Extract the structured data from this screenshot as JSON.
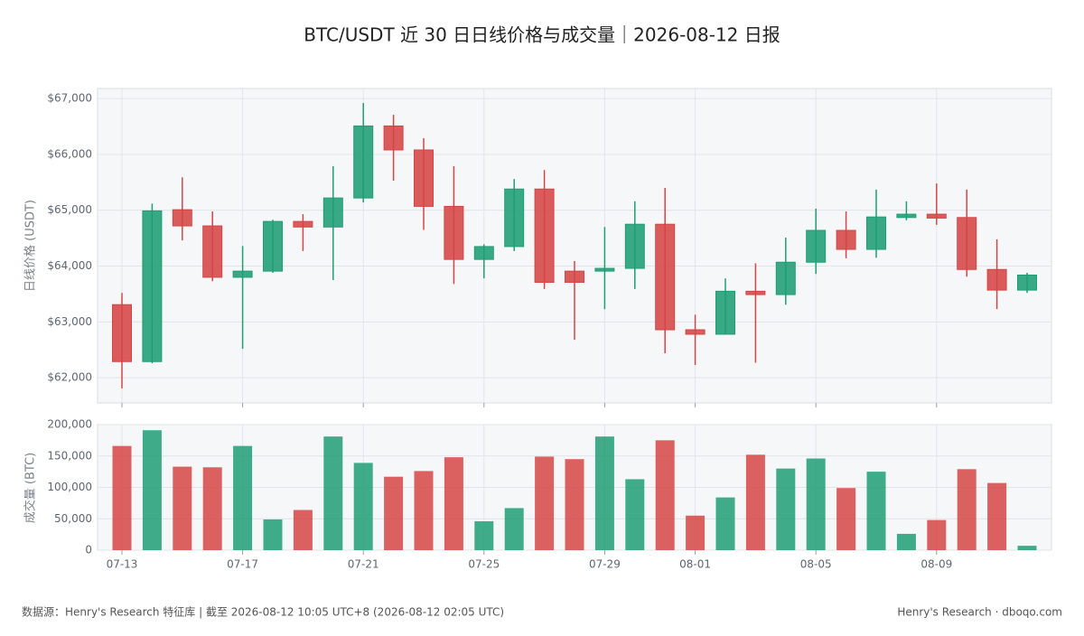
{
  "chart_data": {
    "type": "candlestick",
    "title": "BTC/USDT 近 30 日日线价格与成交量｜2026-08-12 日报",
    "ylabel": "日线价格 (USDT)",
    "categories": [
      "07-13",
      null,
      null,
      null,
      "07-17",
      null,
      null,
      null,
      "07-21",
      null,
      null,
      null,
      "07-25",
      null,
      null,
      null,
      "07-29",
      null,
      null,
      "08-01",
      null,
      null,
      null,
      "08-05",
      null,
      null,
      null,
      "08-09",
      null,
      null,
      null
    ],
    "open": [
      63310,
      62290,
      65010,
      64720,
      63800,
      63910,
      64800,
      64700,
      65220,
      66510,
      66080,
      65070,
      64120,
      64350,
      65380,
      63910,
      63910,
      63960,
      64750,
      62860,
      62780,
      63550,
      63490,
      64070,
      64640,
      64300,
      64870,
      64930,
      64870,
      63940,
      63570
    ],
    "high": [
      63520,
      65120,
      65590,
      64980,
      64360,
      64830,
      64930,
      65790,
      66920,
      66710,
      66290,
      65790,
      64390,
      65560,
      65720,
      64090,
      64700,
      65160,
      65400,
      63130,
      63780,
      64050,
      64510,
      65030,
      64980,
      65370,
      65160,
      65480,
      65370,
      64480,
      63880
    ],
    "low": [
      61810,
      62260,
      64460,
      63730,
      62520,
      63880,
      64270,
      63750,
      65140,
      65530,
      64650,
      63680,
      63780,
      64270,
      63590,
      62680,
      63230,
      63590,
      62440,
      62230,
      62780,
      62270,
      63310,
      63860,
      64140,
      64150,
      64820,
      64740,
      63810,
      63230,
      63520
    ],
    "close": [
      62290,
      64990,
      64720,
      63800,
      63910,
      64800,
      64700,
      65220,
      66510,
      66080,
      65070,
      64120,
      64350,
      65380,
      63710,
      63710,
      63960,
      64750,
      62860,
      62780,
      63550,
      63490,
      64070,
      64640,
      64300,
      64880,
      64930,
      64860,
      63940,
      63570,
      63840
    ],
    "up_color": "#1f9e74",
    "down_color": "#d64545",
    "ylim": [
      61550,
      67180
    ],
    "yticks": [
      {
        "value": 62000,
        "label": "$62,000"
      },
      {
        "value": 63000,
        "label": "$63,000"
      },
      {
        "value": 64000,
        "label": "$64,000"
      },
      {
        "value": 65000,
        "label": "$65,000"
      },
      {
        "value": 66000,
        "label": "$66,000"
      },
      {
        "value": 67000,
        "label": "$67,000"
      }
    ],
    "grid": true,
    "volume": {
      "ylabel": "成交量 (BTC)",
      "values": [
        166000,
        191000,
        133000,
        132000,
        166000,
        49000,
        64000,
        181000,
        139000,
        117000,
        126000,
        148000,
        46000,
        67000,
        149000,
        145000,
        181000,
        113000,
        175000,
        55000,
        84000,
        152000,
        130000,
        146000,
        99000,
        125000,
        26000,
        48000,
        129000,
        107000,
        7000
      ],
      "ylim": [
        0,
        200000
      ],
      "yticks": [
        0,
        {
          "value": 50000,
          "label": "50,000"
        },
        {
          "value": 100000,
          "label": "100,000"
        },
        {
          "value": 150000,
          "label": "150,000"
        },
        {
          "value": 200000,
          "label": "200,000"
        }
      ]
    },
    "source": "数据源：Henry's Research 特征库 | 截至 2026-08-12 10:05 UTC+8 (2026-08-12 02:05 UTC)",
    "credit": "Henry's Research · dboqo.com"
  }
}
